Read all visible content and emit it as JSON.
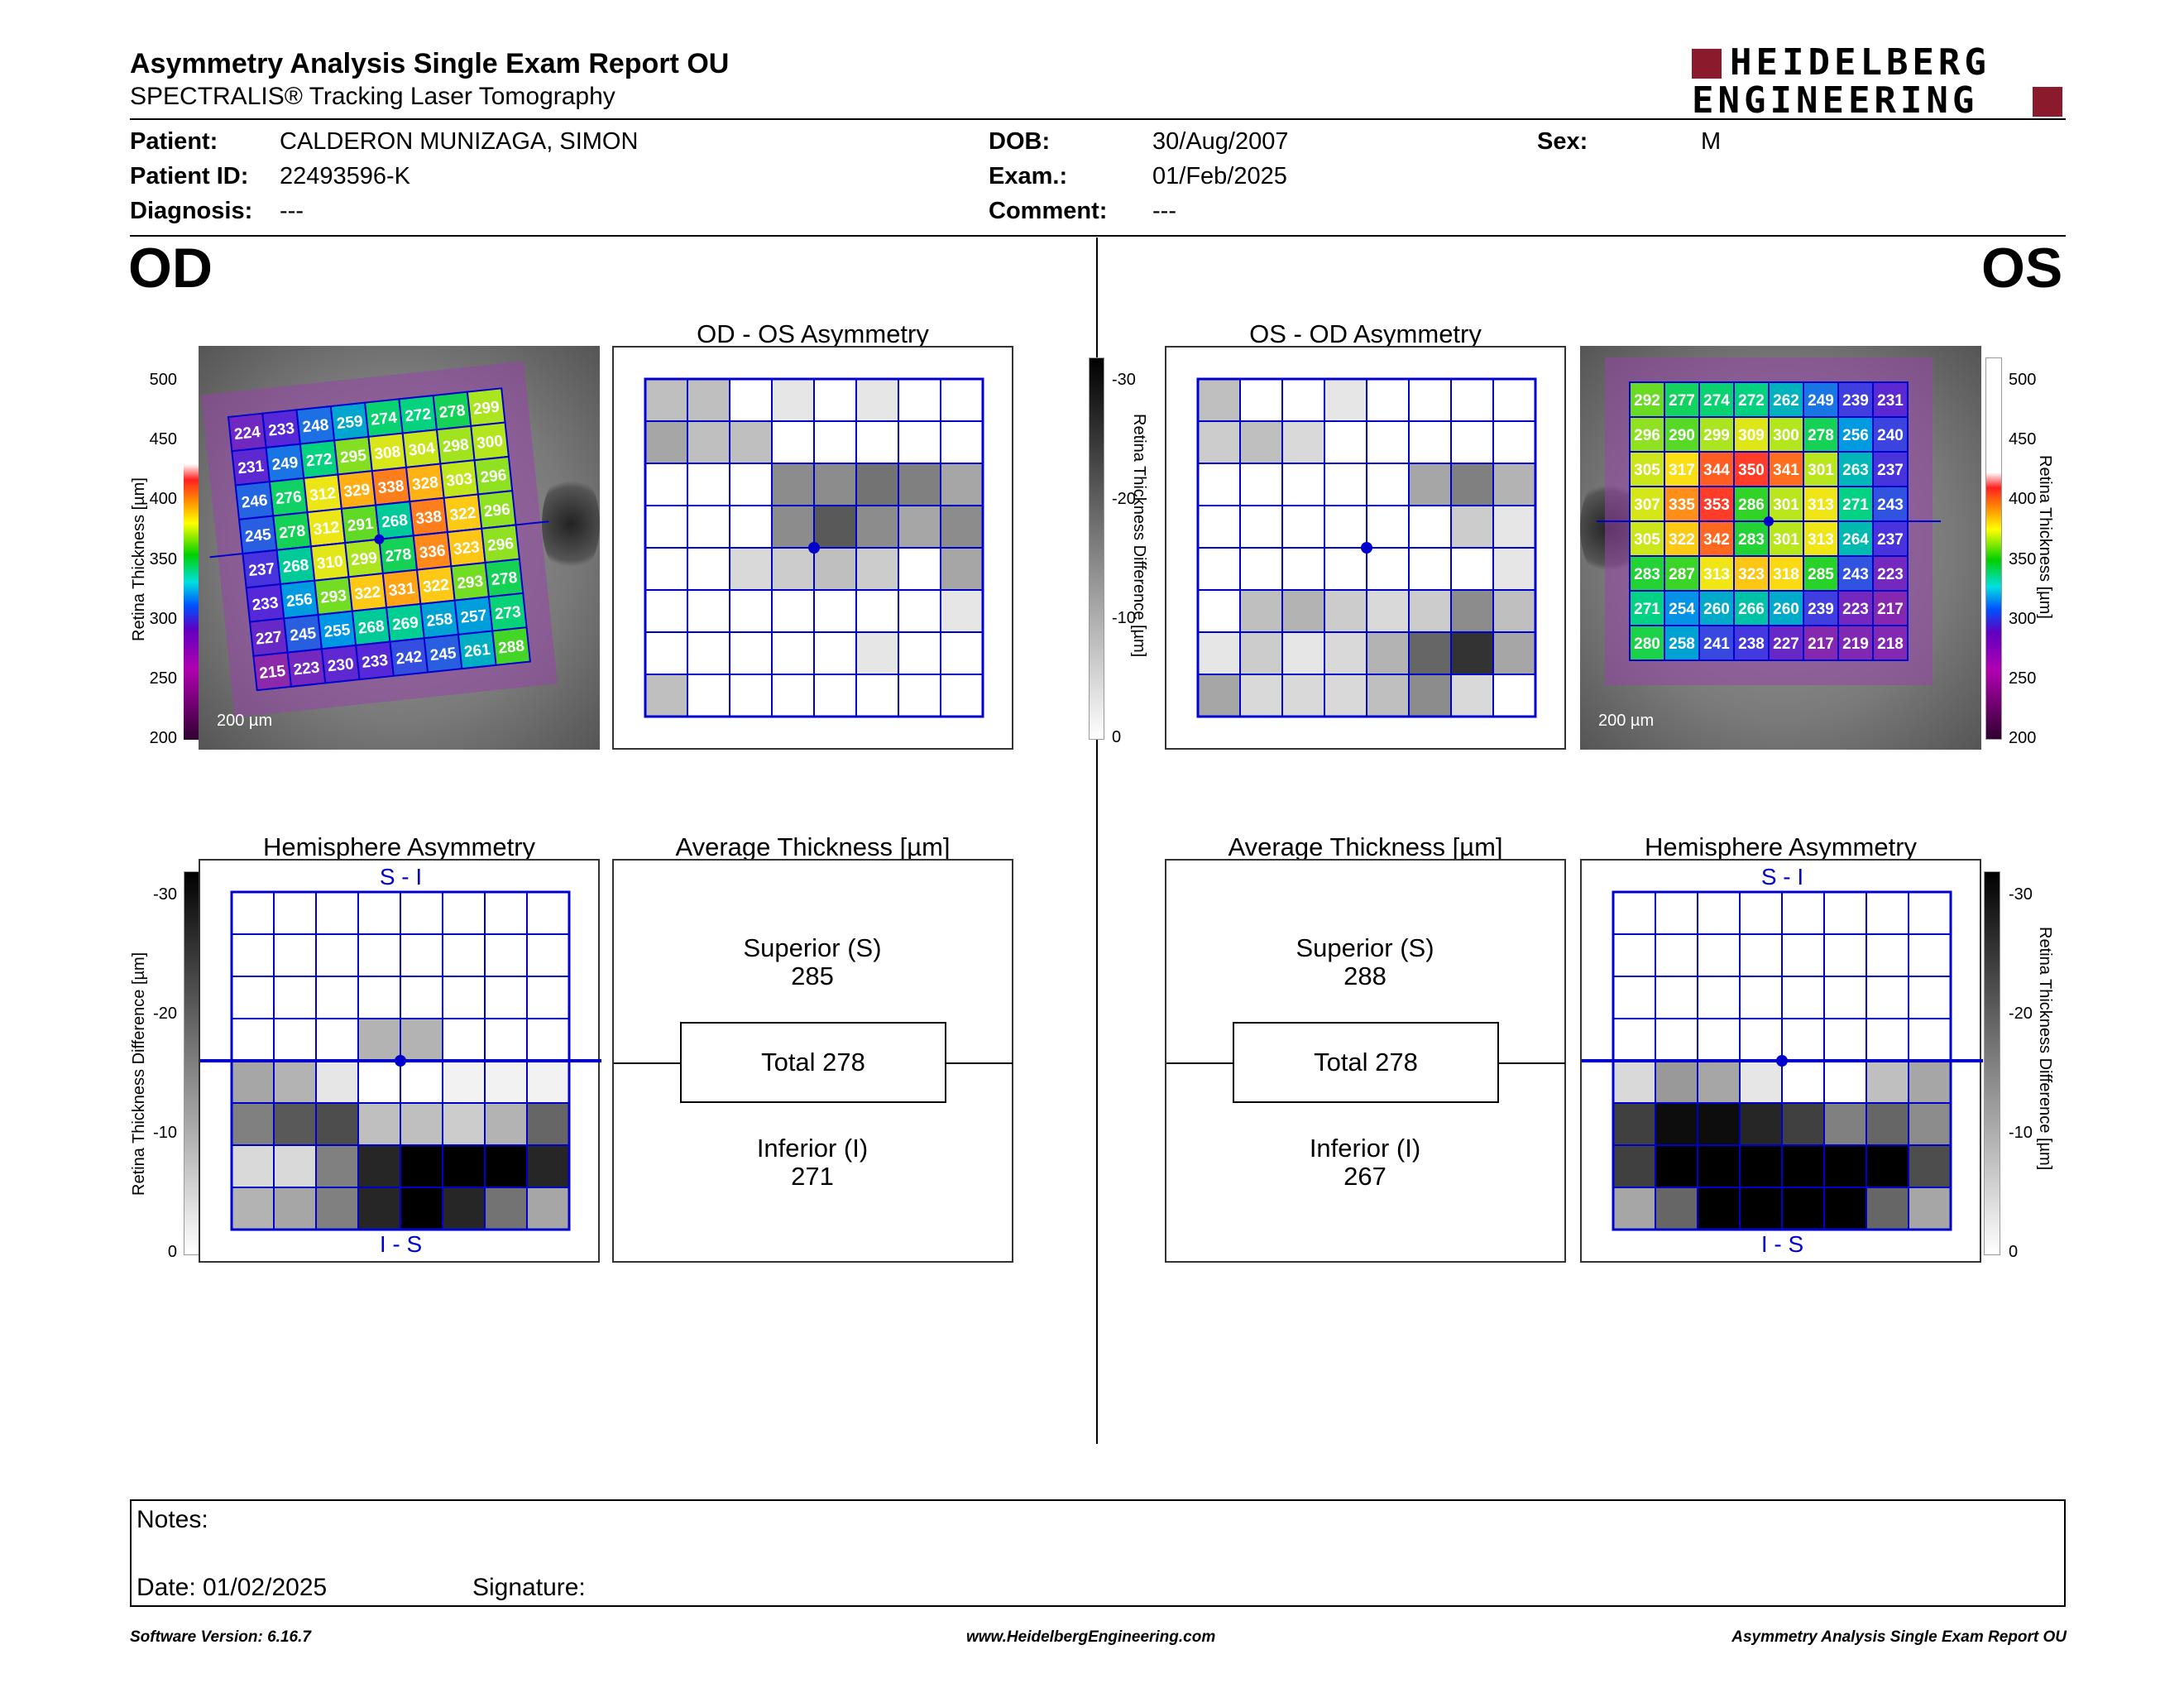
{
  "header": {
    "title": "Asymmetry Analysis Single Exam Report OU",
    "subtitle": "SPECTRALIS® Tracking Laser Tomography",
    "logo_line1": "HEIDELBERG",
    "logo_line2": "ENGINEERING"
  },
  "patient": {
    "patient_label": "Patient:",
    "patient_value": "CALDERON MUNIZAGA, SIMON",
    "id_label": "Patient ID:",
    "id_value": "22493596-K",
    "diagnosis_label": "Diagnosis:",
    "diagnosis_value": "---",
    "dob_label": "DOB:",
    "dob_value": "30/Aug/2007",
    "exam_label": "Exam.:",
    "exam_value": "01/Feb/2025",
    "comment_label": "Comment:",
    "comment_value": "---",
    "sex_label": "Sex:",
    "sex_value": "M"
  },
  "od": {
    "eye_label": "OD",
    "asym_title": "OD - OS Asymmetry",
    "hemi_title": "Hemisphere Asymmetry",
    "avg_title": "Average Thickness [µm]",
    "scale_label": "200 µm",
    "hemi_top": "S - I",
    "hemi_bottom": "I - S",
    "superior_label": "Superior (S)",
    "superior_value": "285",
    "total_label": "Total 278",
    "inferior_label": "Inferior (I)",
    "inferior_value": "271",
    "thickness_grid": [
      [
        224,
        233,
        248,
        259,
        274,
        272,
        278,
        299
      ],
      [
        231,
        249,
        272,
        295,
        308,
        304,
        298,
        300
      ],
      [
        246,
        276,
        312,
        329,
        338,
        328,
        303,
        296
      ],
      [
        245,
        278,
        312,
        291,
        268,
        338,
        322,
        296
      ],
      [
        237,
        268,
        310,
        299,
        278,
        336,
        323,
        296
      ],
      [
        233,
        256,
        293,
        322,
        331,
        322,
        293,
        278
      ],
      [
        227,
        245,
        255,
        268,
        269,
        258,
        257,
        273
      ],
      [
        215,
        223,
        230,
        233,
        242,
        245,
        261,
        288
      ]
    ],
    "asym_grid": [
      [
        0.25,
        0.25,
        0,
        0.1,
        0,
        0.1,
        0,
        0
      ],
      [
        0.35,
        0.25,
        0.25,
        0,
        0,
        0,
        0,
        0
      ],
      [
        0,
        0,
        0,
        0.45,
        0.45,
        0.55,
        0.5,
        0.35
      ],
      [
        0,
        0,
        0,
        0.45,
        0.65,
        0.45,
        0.35,
        0.45
      ],
      [
        0,
        0,
        0.15,
        0.2,
        0.25,
        0.2,
        0,
        0.35
      ],
      [
        0,
        0,
        0,
        0,
        0,
        0,
        0,
        0.1
      ],
      [
        0,
        0,
        0,
        0,
        0,
        0.1,
        0,
        0
      ],
      [
        0.25,
        0,
        0,
        0,
        0,
        0,
        0,
        0
      ]
    ],
    "hemi_grid": [
      [
        0,
        0,
        0,
        0,
        0,
        0,
        0,
        0
      ],
      [
        0,
        0,
        0,
        0,
        0,
        0,
        0,
        0
      ],
      [
        0,
        0,
        0,
        0,
        0,
        0,
        0,
        0
      ],
      [
        0,
        0,
        0,
        0.3,
        0.3,
        0,
        0,
        0
      ],
      [
        0.35,
        0.3,
        0.1,
        0,
        0,
        0.05,
        0.05,
        0.05
      ],
      [
        0.5,
        0.65,
        0.7,
        0.25,
        0.25,
        0.2,
        0.3,
        0.6
      ],
      [
        0.15,
        0.15,
        0.5,
        0.85,
        1,
        1,
        1,
        0.85
      ],
      [
        0.3,
        0.35,
        0.5,
        0.85,
        1,
        0.85,
        0.55,
        0.35
      ]
    ]
  },
  "os": {
    "eye_label": "OS",
    "asym_title": "OS - OD Asymmetry",
    "hemi_title": "Hemisphere Asymmetry",
    "avg_title": "Average Thickness [µm]",
    "scale_label": "200 µm",
    "hemi_top": "S - I",
    "hemi_bottom": "I - S",
    "superior_label": "Superior (S)",
    "superior_value": "288",
    "total_label": "Total 278",
    "inferior_label": "Inferior (I)",
    "inferior_value": "267",
    "thickness_grid": [
      [
        292,
        277,
        274,
        272,
        262,
        249,
        239,
        231
      ],
      [
        296,
        290,
        299,
        309,
        300,
        278,
        256,
        240
      ],
      [
        305,
        317,
        344,
        350,
        341,
        301,
        263,
        237
      ],
      [
        307,
        335,
        353,
        286,
        301,
        313,
        271,
        243
      ],
      [
        305,
        322,
        342,
        283,
        301,
        313,
        264,
        237
      ],
      [
        283,
        287,
        313,
        323,
        318,
        285,
        243,
        223
      ],
      [
        271,
        254,
        260,
        266,
        260,
        239,
        223,
        217
      ],
      [
        280,
        258,
        241,
        238,
        227,
        217,
        219,
        218
      ]
    ],
    "asym_grid": [
      [
        0.25,
        0,
        0,
        0.1,
        0,
        0,
        0,
        0
      ],
      [
        0.2,
        0.25,
        0.15,
        0,
        0,
        0,
        0,
        0
      ],
      [
        0,
        0,
        0,
        0,
        0,
        0.35,
        0.5,
        0.3
      ],
      [
        0,
        0,
        0,
        0,
        0,
        0,
        0.2,
        0.1
      ],
      [
        0,
        0,
        0,
        0,
        0,
        0,
        0,
        0.1
      ],
      [
        0,
        0.25,
        0.3,
        0.2,
        0.15,
        0.2,
        0.45,
        0.25
      ],
      [
        0.1,
        0.2,
        0.1,
        0.15,
        0.3,
        0.6,
        0.8,
        0.35
      ],
      [
        0.35,
        0.15,
        0.15,
        0.15,
        0.25,
        0.45,
        0.15,
        0
      ]
    ],
    "hemi_grid": [
      [
        0,
        0,
        0,
        0,
        0,
        0,
        0,
        0
      ],
      [
        0,
        0,
        0,
        0,
        0,
        0,
        0,
        0
      ],
      [
        0,
        0,
        0,
        0,
        0,
        0,
        0,
        0
      ],
      [
        0,
        0,
        0,
        0,
        0,
        0,
        0,
        0
      ],
      [
        0.15,
        0.4,
        0.35,
        0.1,
        0,
        0,
        0.25,
        0.35
      ],
      [
        0.75,
        0.95,
        0.95,
        0.85,
        0.75,
        0.5,
        0.6,
        0.45
      ],
      [
        0.75,
        1,
        1,
        1,
        1,
        1,
        1,
        0.7
      ],
      [
        0.35,
        0.6,
        1,
        1,
        1,
        1,
        0.6,
        0.35
      ]
    ]
  },
  "scales": {
    "thickness_ticks": [
      "500",
      "450",
      "400",
      "350",
      "300",
      "250",
      "200"
    ],
    "diff_ticks": [
      "-30",
      "-20",
      "-10",
      "0"
    ],
    "thickness_axis_label": "Retina Thickness [µm]",
    "diff_axis_label": "Retina Thickness Difference [µm]"
  },
  "notes": {
    "notes_label": "Notes:",
    "date_label": "Date: 01/02/2025",
    "signature_label": "Signature:"
  },
  "footer": {
    "software": "Software Version: 6.16.7",
    "website": "www.HeidelbergEngineering.com",
    "report": "Asymmetry Analysis Single Exam Report OU"
  },
  "colors": {
    "grid_blue": "#0000cc",
    "logo_red": "#8b1a2c"
  }
}
